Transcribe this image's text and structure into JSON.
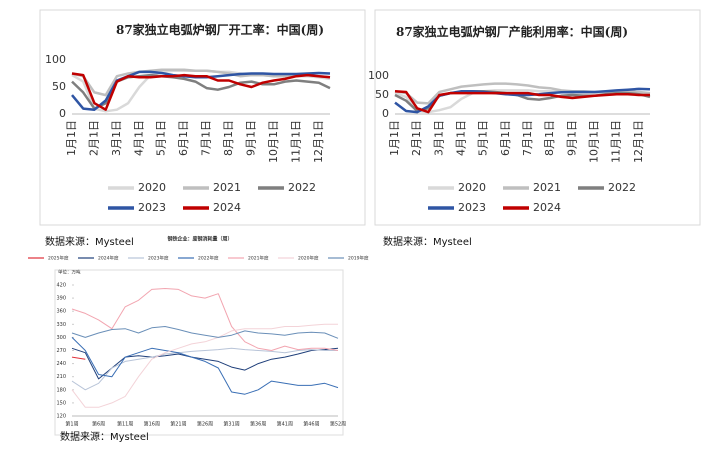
{
  "chart_data": [
    {
      "type": "line",
      "title": "87家独立电弧炉钢厂开工率：中国(周)",
      "categories": [
        "1月1日",
        null,
        "2月1日",
        null,
        "3月1日",
        null,
        "4月1日",
        null,
        "5月1日",
        null,
        "6月1日",
        null,
        "7月1日",
        null,
        "8月1日",
        null,
        "9月1日",
        null,
        "10月1日",
        null,
        "11月1日",
        null,
        "12月1日",
        null
      ],
      "ylim": [
        0,
        100
      ],
      "yticks": [
        0,
        50,
        100
      ],
      "series": [
        {
          "name": "2020",
          "color": "#d9d9d9",
          "values": [
            72,
            60,
            10,
            5,
            8,
            20,
            50,
            72,
            78,
            80,
            80,
            80,
            80,
            78,
            78,
            75,
            72,
            72,
            70,
            70,
            70,
            70,
            68,
            65
          ]
        },
        {
          "name": "2021",
          "color": "#bfbfbf",
          "values": [
            75,
            70,
            40,
            35,
            70,
            75,
            78,
            80,
            82,
            82,
            82,
            80,
            80,
            78,
            75,
            70,
            72,
            72,
            70,
            70,
            72,
            72,
            70,
            68
          ]
        },
        {
          "name": "2022",
          "color": "#7f7f7f",
          "values": [
            60,
            40,
            10,
            20,
            60,
            68,
            70,
            72,
            70,
            68,
            65,
            60,
            48,
            45,
            50,
            58,
            60,
            55,
            55,
            60,
            62,
            60,
            58,
            48
          ]
        },
        {
          "name": "2023",
          "color": "#2f55a4",
          "values": [
            35,
            10,
            8,
            25,
            62,
            70,
            78,
            78,
            76,
            72,
            70,
            68,
            68,
            70,
            72,
            74,
            75,
            75,
            74,
            74,
            74,
            75,
            76,
            75
          ]
        },
        {
          "name": "2024",
          "color": "#c00000",
          "values": [
            75,
            72,
            20,
            8,
            60,
            70,
            68,
            68,
            70,
            70,
            72,
            70,
            70,
            62,
            62,
            55,
            50,
            58,
            62,
            65,
            70,
            72,
            70,
            68
          ]
        }
      ],
      "source": "数据来源：Mysteel"
    },
    {
      "type": "line",
      "title": "87家独立电弧炉钢厂产能利用率：中国(周)",
      "categories": [
        "1月1日",
        null,
        "2月1日",
        null,
        "3月1日",
        null,
        "4月1日",
        null,
        "5月1日",
        null,
        "6月1日",
        null,
        "7月1日",
        null,
        "8月1日",
        null,
        "9月1日",
        null,
        "10月1日",
        null,
        "11月1日",
        null,
        "12月1日",
        null
      ],
      "ylim": [
        0,
        100
      ],
      "yticks": [
        0,
        50,
        100
      ],
      "series": [
        {
          "name": "2020",
          "color": "#d9d9d9",
          "values": [
            55,
            45,
            8,
            5,
            10,
            18,
            40,
            55,
            60,
            62,
            62,
            62,
            62,
            60,
            60,
            58,
            55,
            55,
            55,
            55,
            55,
            55,
            52,
            50
          ]
        },
        {
          "name": "2021",
          "color": "#bfbfbf",
          "values": [
            60,
            55,
            30,
            28,
            58,
            65,
            72,
            75,
            78,
            80,
            80,
            78,
            75,
            70,
            68,
            62,
            60,
            60,
            58,
            58,
            60,
            60,
            58,
            55
          ]
        },
        {
          "name": "2022",
          "color": "#7f7f7f",
          "values": [
            50,
            35,
            8,
            15,
            48,
            55,
            58,
            60,
            60,
            58,
            55,
            50,
            40,
            38,
            42,
            48,
            50,
            48,
            48,
            52,
            55,
            55,
            52,
            45
          ]
        },
        {
          "name": "2023",
          "color": "#2f55a4",
          "values": [
            30,
            8,
            5,
            20,
            48,
            55,
            60,
            60,
            58,
            55,
            52,
            50,
            50,
            52,
            55,
            57,
            58,
            58,
            58,
            60,
            62,
            64,
            66,
            65
          ]
        },
        {
          "name": "2024",
          "color": "#c00000",
          "values": [
            60,
            58,
            15,
            5,
            50,
            55,
            55,
            55,
            55,
            55,
            55,
            55,
            55,
            50,
            50,
            45,
            42,
            45,
            48,
            50,
            52,
            52,
            50,
            50
          ]
        }
      ],
      "source": "数据来源：Mysteel"
    },
    {
      "type": "line",
      "title": "钢铁企业：废钢消耗量（周）",
      "y_label": "单位：万吨",
      "categories": [
        "第1周",
        null,
        "第6周",
        null,
        "第11周",
        null,
        "第16周",
        null,
        "第21周",
        null,
        "第26周",
        null,
        "第31周",
        null,
        "第36周",
        null,
        "第41周",
        null,
        "第46周",
        null,
        "第52周"
      ],
      "ylim": [
        120,
        420
      ],
      "yticks": [
        120,
        150,
        180,
        210,
        240,
        270,
        300,
        330,
        360,
        390,
        420
      ],
      "series": [
        {
          "name": "2025年度",
          "color": "#e0303a",
          "values": [
            255,
            250,
            null,
            null,
            null,
            null,
            null,
            null,
            null,
            null,
            null,
            null,
            null,
            null,
            null,
            null,
            null,
            null,
            null,
            null,
            null
          ]
        },
        {
          "name": "2024年度",
          "color": "#1f3f7a",
          "values": [
            275,
            265,
            205,
            230,
            255,
            258,
            255,
            258,
            262,
            255,
            250,
            245,
            232,
            225,
            240,
            250,
            255,
            262,
            270,
            272,
            275
          ]
        },
        {
          "name": "2023年度",
          "color": "#b8c4d8",
          "values": [
            200,
            180,
            195,
            230,
            245,
            250,
            255,
            262,
            265,
            268,
            270,
            272,
            275,
            272,
            270,
            268,
            265,
            270,
            272,
            270,
            270
          ]
        },
        {
          "name": "2022年度",
          "color": "#3a6fb5",
          "values": [
            300,
            270,
            215,
            210,
            255,
            265,
            275,
            270,
            265,
            255,
            245,
            230,
            175,
            170,
            180,
            200,
            195,
            190,
            190,
            195,
            185
          ]
        },
        {
          "name": "2021年度",
          "color": "#f2a5b0",
          "values": [
            365,
            355,
            340,
            320,
            370,
            385,
            410,
            412,
            410,
            395,
            390,
            400,
            325,
            290,
            275,
            270,
            280,
            272,
            275,
            275,
            270
          ]
        },
        {
          "name": "2020年度",
          "color": "#f3d3d8",
          "values": [
            180,
            140,
            140,
            150,
            165,
            210,
            250,
            265,
            275,
            285,
            290,
            300,
            315,
            320,
            320,
            320,
            325,
            325,
            328,
            330,
            330
          ]
        },
        {
          "name": "2019年度",
          "color": "#6a8fb8",
          "values": [
            310,
            300,
            310,
            318,
            320,
            310,
            322,
            325,
            318,
            310,
            305,
            300,
            305,
            315,
            310,
            308,
            305,
            310,
            312,
            310,
            298
          ]
        }
      ],
      "source": "数据来源：Mysteel"
    }
  ]
}
